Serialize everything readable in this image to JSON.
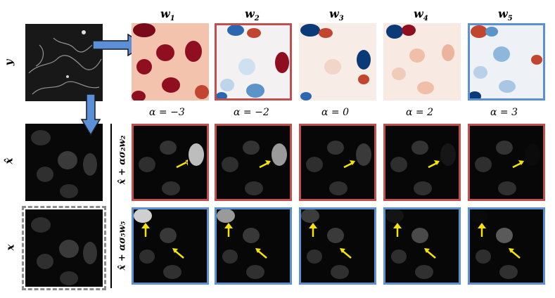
{
  "row_labels": {
    "y": "y",
    "x_hat": "x̂",
    "x": "x"
  },
  "weight_labels": [
    "w",
    "w",
    "w",
    "w",
    "w"
  ],
  "weight_subscripts": [
    "1",
    "2",
    "3",
    "4",
    "5"
  ],
  "alpha_labels": [
    "α = −3",
    "α = −2",
    "α = 0",
    "α = 2",
    "α = 3"
  ],
  "row_red_label": "x̂ + ασ₂w₂",
  "row_blue_label": "x̂ + ασ₅w₅",
  "colors": {
    "red_frame": "#c0504d",
    "blue_frame": "#5b8fd6",
    "arrow_fill": "#5b8fd6",
    "yellow_arrow": "#f5e400",
    "dashed_frame": "#8c8c8c"
  }
}
